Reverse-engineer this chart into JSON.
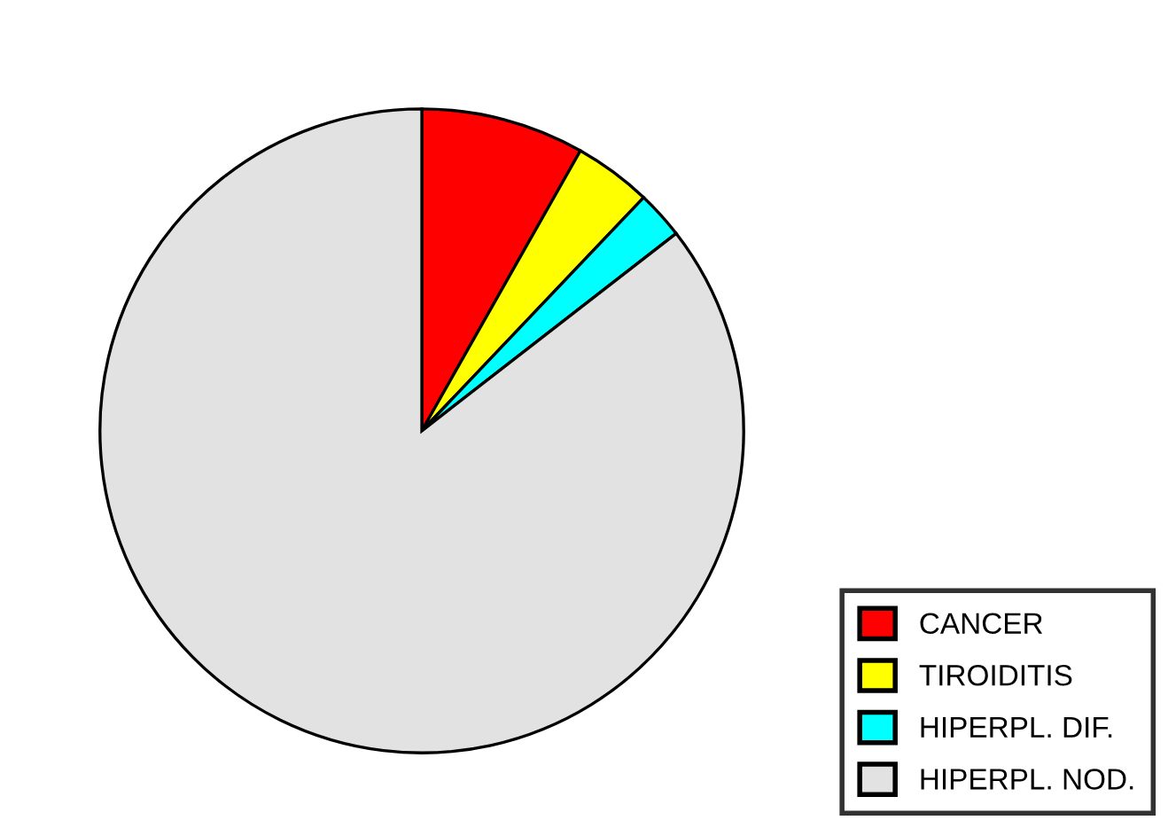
{
  "chart_data": {
    "type": "pie",
    "categories": [
      "CANCER",
      "TIROIDITIS",
      "HIPERPL. DIF.",
      "HIPERPL. NOD."
    ],
    "values": [
      8.2,
      3.9,
      2.4,
      85.5
    ],
    "colors": [
      "#ff0000",
      "#ffff00",
      "#00ffff",
      "#e2e2e2"
    ],
    "legend": "bottom right"
  }
}
